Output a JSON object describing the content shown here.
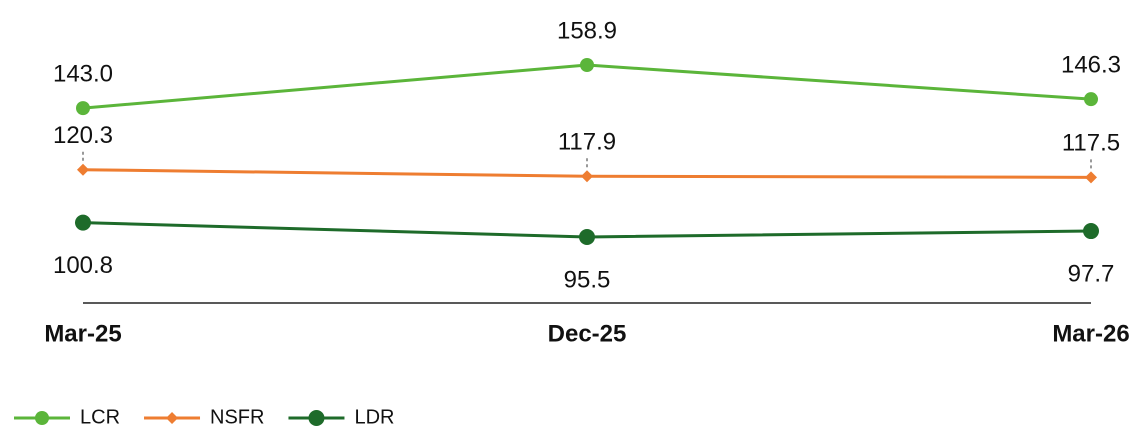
{
  "chart_data": {
    "type": "line",
    "categories": [
      "Mar-25",
      "Dec-25",
      "Mar-26"
    ],
    "series": [
      {
        "name": "LCR",
        "color": "#5bb53a",
        "marker": "circle",
        "label_position": "above",
        "values": [
          143.0,
          158.9,
          146.3
        ],
        "value_labels": [
          "143.0",
          "158.9",
          "146.3"
        ]
      },
      {
        "name": "NSFR",
        "color": "#ee7d31",
        "marker": "diamond",
        "label_position": "above",
        "values": [
          120.3,
          117.9,
          117.5
        ],
        "value_labels": [
          "120.3",
          "117.9",
          "117.5"
        ]
      },
      {
        "name": "LDR",
        "color": "#1e6b2a",
        "marker": "circle",
        "label_position": "below",
        "values": [
          100.8,
          95.5,
          97.7
        ],
        "value_labels": [
          "100.8",
          "95.5",
          "97.7"
        ]
      }
    ],
    "legend": "bottom-left"
  }
}
